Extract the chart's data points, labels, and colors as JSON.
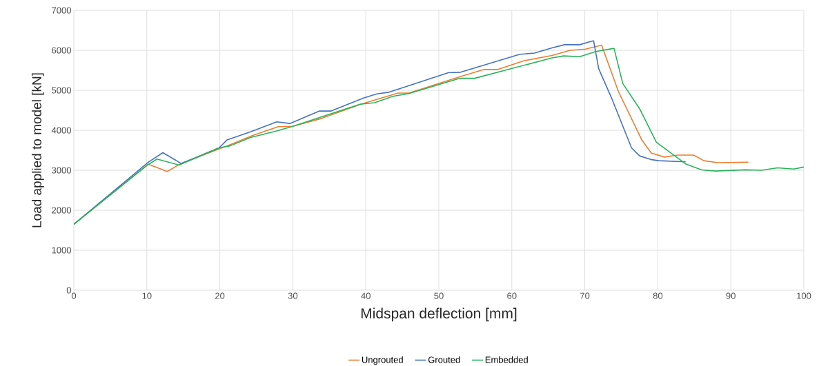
{
  "chart_data": {
    "type": "line",
    "xlabel": "Midspan deflection [mm]",
    "ylabel": "Load applied to model [kN]",
    "xlim": [
      0,
      100
    ],
    "xticks": [
      0,
      10,
      20,
      30,
      40,
      50,
      60,
      70,
      80,
      90,
      100
    ],
    "ylim": [
      0,
      7000
    ],
    "yticks": [
      0,
      1000,
      2000,
      3000,
      4000,
      5000,
      6000,
      7000
    ],
    "grid": true,
    "legend": "bottom",
    "marker": "none",
    "line_style": "solid",
    "series": [
      {
        "name": "Ungrouted",
        "color": "#ed7d31",
        "x": [
          0,
          10.2,
          12.8,
          14.7,
          21.4,
          24.5,
          28.0,
          30.0,
          34.0,
          39.3,
          44.4,
          45.9,
          52.9,
          56.2,
          58.1,
          61.7,
          65.5,
          68.0,
          70.1,
          72.3,
          74.6,
          77.8,
          79.1,
          80.9,
          82.7,
          84.9,
          86.3,
          88.2,
          92.4
        ],
        "values": [
          1650,
          3150,
          2970,
          3170,
          3640,
          3870,
          4090,
          4100,
          4300,
          4650,
          4930,
          4930,
          5340,
          5520,
          5520,
          5740,
          5870,
          6000,
          6030,
          6130,
          4970,
          3760,
          3430,
          3330,
          3380,
          3380,
          3240,
          3190,
          3200
        ]
      },
      {
        "name": "Grouted",
        "color": "#4472c4",
        "x": [
          0,
          10.2,
          12.2,
          14.7,
          19.9,
          21.0,
          24.2,
          27.8,
          29.6,
          33.6,
          35.2,
          39.6,
          41.5,
          43.1,
          51.3,
          52.9,
          61.1,
          63.1,
          65.5,
          67.2,
          69.3,
          71.2,
          71.9,
          73.7,
          76.4,
          77.5,
          79.0,
          80.1,
          83.8
        ],
        "values": [
          1650,
          3200,
          3440,
          3170,
          3560,
          3760,
          3960,
          4210,
          4170,
          4480,
          4480,
          4800,
          4910,
          4950,
          5440,
          5450,
          5900,
          5930,
          6060,
          6140,
          6140,
          6240,
          5540,
          4790,
          3560,
          3360,
          3270,
          3240,
          3210
        ]
      },
      {
        "name": "Embedded",
        "color": "#27b45a",
        "x": [
          0,
          10.0,
          11.4,
          14.4,
          19.9,
          21.4,
          24.2,
          27.7,
          30.0,
          39.2,
          41.2,
          43.7,
          45.9,
          52.9,
          54.9,
          65.5,
          67.1,
          69.3,
          71.5,
          74.0,
          75.2,
          77.5,
          79.8,
          83.8,
          86.0,
          87.9,
          92.0,
          94.2,
          96.4,
          98.6,
          100
        ],
        "values": [
          1650,
          3120,
          3280,
          3130,
          3560,
          3610,
          3820,
          3980,
          4100,
          4650,
          4690,
          4850,
          4920,
          5300,
          5300,
          5810,
          5860,
          5840,
          5970,
          6050,
          5170,
          4540,
          3700,
          3160,
          3010,
          2980,
          3010,
          3000,
          3060,
          3030,
          3080
        ]
      }
    ]
  }
}
